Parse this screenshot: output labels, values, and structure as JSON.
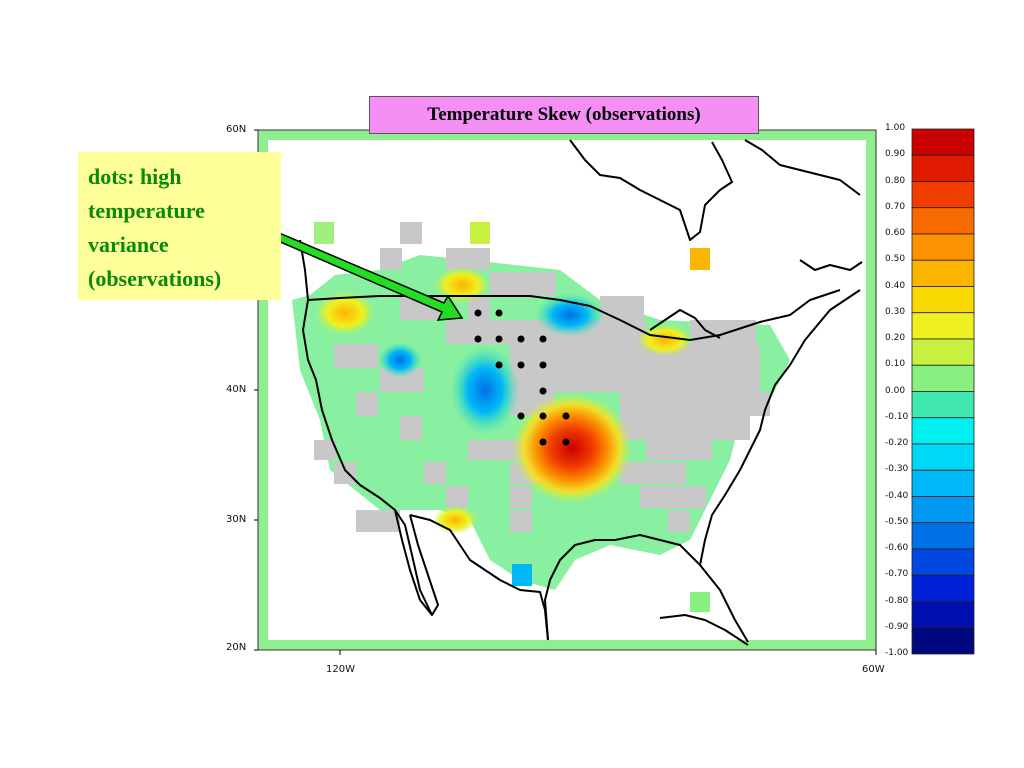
{
  "title": "Temperature Skew (observations)",
  "annotation": {
    "lines": [
      "dots: high",
      "temperature",
      "variance",
      "(observations)"
    ],
    "color": "#0a8a0a",
    "background": "#ffff99"
  },
  "axes": {
    "lat_labels": [
      "60N",
      "40N",
      "30N",
      "20N"
    ],
    "lon_labels": [
      "120W",
      "60W"
    ]
  },
  "colorbar": {
    "labels": [
      "1.00",
      "0.90",
      "0.80",
      "0.70",
      "0.60",
      "0.50",
      "0.40",
      "0.30",
      "0.20",
      "0.10",
      "0.00",
      "-0.10",
      "-0.20",
      "-0.30",
      "-0.40",
      "-0.50",
      "-0.60",
      "-0.70",
      "-0.80",
      "-0.90",
      "-1.00"
    ],
    "colors": [
      "#c80000",
      "#e01a00",
      "#f03c00",
      "#f86a00",
      "#fc9200",
      "#fcb400",
      "#f8d800",
      "#f0f020",
      "#c8f040",
      "#88f080",
      "#40e8b0",
      "#00f0f0",
      "#00d8f8",
      "#00b8f8",
      "#0098f0",
      "#0070e8",
      "#0048e0",
      "#0020d8",
      "#0010b0",
      "#000880"
    ]
  },
  "map_colors": {
    "background": "#ffffff",
    "frame": "#90ee90",
    "missing": "#c8c8c8",
    "dots": "#000000",
    "arrow_fill": "#22dd22",
    "arrow_outline": "#000000"
  }
}
